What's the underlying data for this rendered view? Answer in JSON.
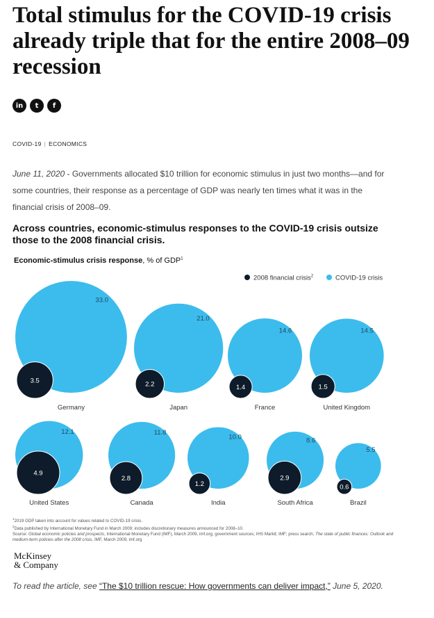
{
  "headline": "Total stimulus for the COVID-19 crisis already triple that for the entire 2008–09 recession",
  "share": {
    "linkedin": "in",
    "twitter": "t",
    "facebook": "f"
  },
  "tags": [
    "COVID-19",
    "ECONOMICS"
  ],
  "intro": {
    "date": "June 11, 2020",
    "text": " - Governments allocated $10 trillion for economic stimulus in just two months—and for some countries, their response as a percentage of GDP was nearly ten times what it was in the financial crisis of 2008–09."
  },
  "chart_heading": "Across countries, economic-stimulus responses to the COVID-19 crisis outsize those to the 2008 financial crisis.",
  "colors": {
    "financial_2008": "#0d1b2a",
    "covid": "#3cbcec"
  },
  "chart_data": {
    "type": "bubble",
    "measure": "Economic-stimulus crisis response",
    "unit": "% of GDP",
    "unit_footnote": "1",
    "legend": [
      {
        "name": "2008 financial crisis",
        "footnote": "2",
        "color": "#0d1b2a"
      },
      {
        "name": "COVID-19 crisis",
        "color": "#3cbcec"
      }
    ],
    "legend_position": "top-right",
    "countries": [
      {
        "name": "Germany",
        "financial_2008": 3.5,
        "covid": 33.0
      },
      {
        "name": "Japan",
        "financial_2008": 2.2,
        "covid": 21.0
      },
      {
        "name": "France",
        "financial_2008": 1.4,
        "covid": 14.6
      },
      {
        "name": "United Kingdom",
        "financial_2008": 1.5,
        "covid": 14.5
      },
      {
        "name": "United States",
        "financial_2008": 4.9,
        "covid": 12.1
      },
      {
        "name": "Canada",
        "financial_2008": 2.8,
        "covid": 11.8
      },
      {
        "name": "India",
        "financial_2008": 1.2,
        "covid": 10.0
      },
      {
        "name": "South Africa",
        "financial_2008": 2.9,
        "covid": 8.6
      },
      {
        "name": "Brazil",
        "financial_2008": 0.6,
        "covid": 5.5
      }
    ]
  },
  "footnotes": {
    "n1": "2019 GDP taken into account for values related to COVID-19 crisis.",
    "n2": "Data published by International Monetary Fund in March 2009; includes discretionary measures announced for 2008–10.",
    "source_prefix": "Source: ",
    "source_italic_1": "Global economic policies and prospects",
    "source_mid": ", International Monetary Fund (IMF), March 2009, imf.org; government sources; IHS Markit; IMF; press search; ",
    "source_italic_2": "The state of public finances: Outlook and medium-term policies after the 2008 crisis",
    "source_end": ", IMF, March 2009, imf.org"
  },
  "logo": {
    "line1": "McKinsey",
    "line2": "& Company"
  },
  "read_more": {
    "prefix": "To read the article, see ",
    "link": "“The $10 trillion rescue: How governments can deliver impact,”",
    "suffix": " June 5, 2020."
  }
}
